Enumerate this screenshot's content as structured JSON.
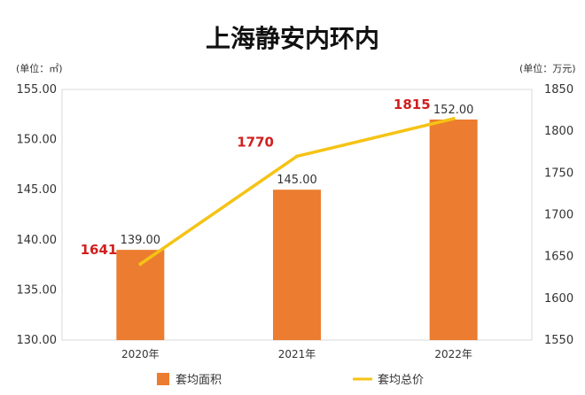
{
  "chart_data": {
    "type": "bar",
    "title": "上海静安内环内",
    "categories": [
      "2020年",
      "2021年",
      "2022年"
    ],
    "series": [
      {
        "name": "套均面积",
        "type": "bar",
        "axis": "left",
        "values": [
          139.0,
          145.0,
          152.0
        ],
        "labels": [
          "139.00",
          "145.00",
          "152.00"
        ],
        "color": "#ec7c2f"
      },
      {
        "name": "套均总价",
        "type": "line",
        "axis": "right",
        "values": [
          1641,
          1770,
          1815
        ],
        "labels": [
          "1641",
          "1770",
          "1815"
        ],
        "color": "#f5c315"
      }
    ],
    "y_left": {
      "unit_label": "(单位：㎡)",
      "range": [
        130,
        155
      ],
      "ticks": [
        "130.00",
        "135.00",
        "140.00",
        "145.00",
        "150.00",
        "155.00"
      ]
    },
    "y_right": {
      "unit_label": "(单位：万元)",
      "range": [
        1550,
        1850
      ],
      "ticks": [
        "1550",
        "1600",
        "1650",
        "1700",
        "1750",
        "1800",
        "1850"
      ]
    },
    "grid": false,
    "legend_position": "bottom",
    "line_label_color": "#d01f1f"
  }
}
